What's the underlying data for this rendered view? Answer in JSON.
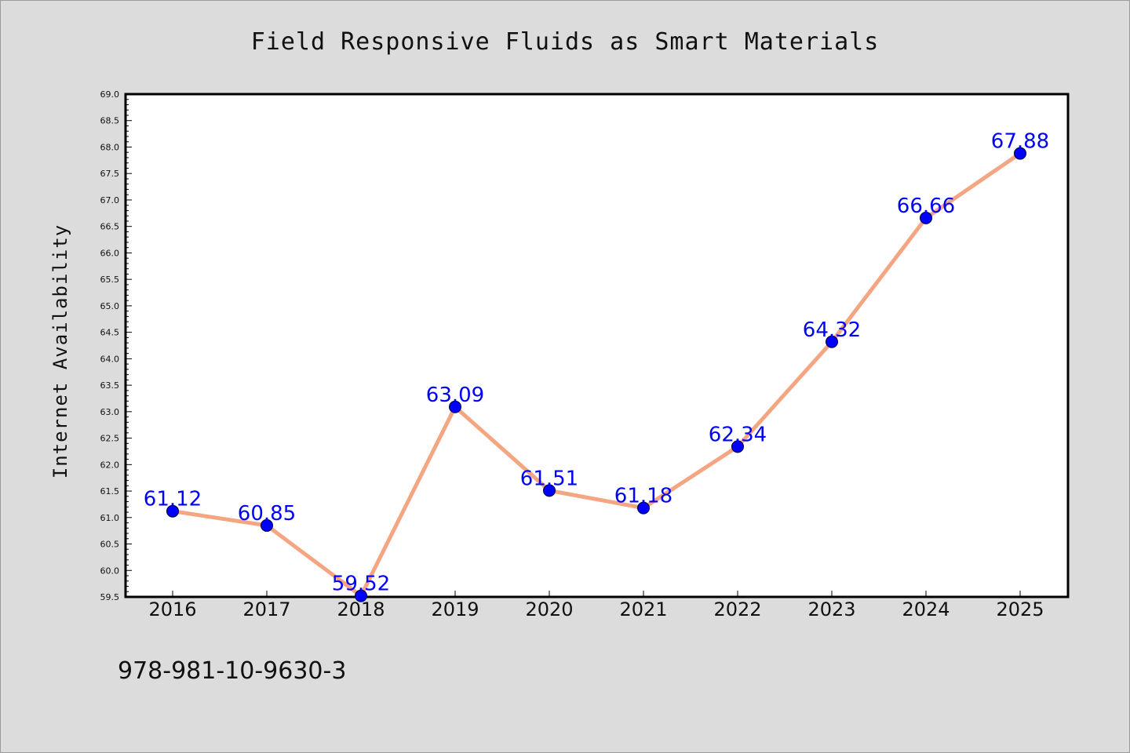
{
  "chart_data": {
    "type": "line",
    "title": "Field Responsive Fluids as Smart Materials",
    "xlabel": "",
    "ylabel": "Internet Availability",
    "categories": [
      "2016",
      "2017",
      "2018",
      "2019",
      "2020",
      "2021",
      "2022",
      "2023",
      "2024",
      "2025"
    ],
    "series": [
      {
        "values": [
          61.12,
          60.85,
          59.52,
          63.09,
          61.51,
          61.18,
          62.34,
          64.32,
          66.66,
          67.88
        ]
      }
    ],
    "data_labels": [
      "61.12",
      "60.85",
      "59.52",
      "63.09",
      "61.51",
      "61.18",
      "62.34",
      "64.32",
      "66.66",
      "67.88"
    ],
    "ylim": [
      59.5,
      69.0
    ],
    "y_major_ticks": [
      "59.5",
      "60.0",
      "60.5",
      "61.0",
      "61.5",
      "62.0",
      "62.5",
      "63.0",
      "63.5",
      "64.0",
      "64.5",
      "65.0",
      "65.5",
      "66.0",
      "66.5",
      "67.0",
      "67.5",
      "68.0",
      "68.5",
      "69.0"
    ],
    "y_tick_step": 0.5,
    "y_minor_step": 0.1,
    "grid": false,
    "legend": "none",
    "colors": {
      "line": "#f4a582",
      "marker": "#0000ff",
      "data_label": "#0000ff",
      "plot_background": "#ffffff",
      "figure_background": "#dcdcdc"
    }
  },
  "footer": {
    "isbn": "978-981-10-9630-3"
  }
}
